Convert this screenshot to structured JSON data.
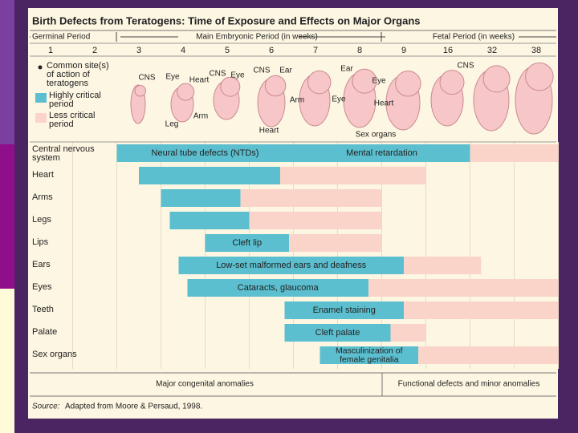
{
  "chart_data": {
    "type": "range_bar",
    "title": "Birth Defects from Teratogens: Time of Exposure and Effects on Major Organs",
    "periods": [
      "Germinal Period",
      "Main Embryonic Period (in weeks)",
      "Fetal Period (in weeks)"
    ],
    "xticks": [
      1,
      2,
      3,
      4,
      5,
      6,
      7,
      8,
      9,
      16,
      32,
      38
    ],
    "xlim": [
      0.5,
      41
    ],
    "categories": [
      "Central nervous system",
      "Heart",
      "Arms",
      "Legs",
      "Lips",
      "Ears",
      "Eyes",
      "Teeth",
      "Palate",
      "Sex organs"
    ],
    "legend_marker": "Common site(s) of action of teratogens",
    "series": [
      {
        "name": "Highly critical period",
        "color": "#5cbfcf",
        "ranges": [
          [
            2.5,
            24
          ],
          [
            3,
            6.2
          ],
          [
            3.5,
            5.3
          ],
          [
            3.7,
            5.5
          ],
          [
            4.5,
            6.4
          ],
          [
            3.9,
            9
          ],
          [
            4.1,
            8.2
          ],
          [
            6.3,
            9
          ],
          [
            6.3,
            8.7
          ],
          [
            7.1,
            11.3
          ]
        ]
      },
      {
        "name": "Less critical period",
        "color": "#fad4c8",
        "ranges": [
          [
            24,
            41
          ],
          [
            6.2,
            12.5
          ],
          [
            5.3,
            8.5
          ],
          [
            5.5,
            8.5
          ],
          [
            6.4,
            8.5
          ],
          [
            9,
            28
          ],
          [
            8.2,
            41
          ],
          [
            9,
            41
          ],
          [
            8.7,
            12.5
          ],
          [
            11.3,
            41
          ]
        ]
      }
    ],
    "bar_labels": [
      [
        [
          "Neural tube defects (NTDs)"
        ],
        [
          "Mental retardation"
        ]
      ],
      [],
      [],
      [],
      [
        [
          "Cleft lip"
        ]
      ],
      [
        [
          "Low-set malformed ears and deafness"
        ]
      ],
      [
        [
          "Cataracts, glaucoma"
        ]
      ],
      [
        [
          "Enamel staining"
        ]
      ],
      [
        [
          "Cleft palate"
        ]
      ],
      [
        [
          "Masculinization of",
          "female genitalia"
        ]
      ]
    ],
    "illustration_labels": [
      "CNS",
      "Eye",
      "Heart",
      "Leg",
      "Arm",
      "CNS",
      "Eye",
      "CNS",
      "Ear",
      "Arm",
      "Heart",
      "Ear",
      "Eye",
      "Eye",
      "Heart",
      "Sex organs",
      "CNS"
    ],
    "footer_labels": [
      "Major congenital anomalies",
      "Functional defects and minor anomalies"
    ],
    "source_prefix": "Source:",
    "source": "Adapted from Moore & Persaud, 1998."
  }
}
